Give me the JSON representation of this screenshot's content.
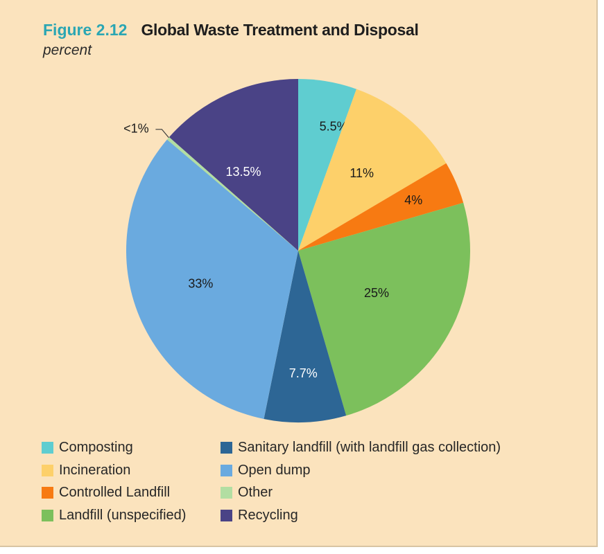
{
  "figure": {
    "number": "Figure 2.12",
    "title": "Global Waste Treatment and Disposal",
    "subtitle": "percent"
  },
  "chart_data": {
    "type": "pie",
    "title": "Global Waste Treatment and Disposal",
    "subtitle": "percent",
    "legend_position": "bottom",
    "slices": [
      {
        "name": "Composting",
        "value": 5.5,
        "label": "5.5%",
        "color": "#5fcdd0",
        "label_color": "#1a1a1a"
      },
      {
        "name": "Incineration",
        "value": 11,
        "label": "11%",
        "color": "#fdd06a",
        "label_color": "#1a1a1a"
      },
      {
        "name": "Controlled Landfill",
        "value": 4,
        "label": "4%",
        "color": "#f77a12",
        "label_color": "#1a1a1a"
      },
      {
        "name": "Landfill (unspecified)",
        "value": 25,
        "label": "25%",
        "color": "#7cc05c",
        "label_color": "#1a1a1a"
      },
      {
        "name": "Sanitary landfill (with landfill gas collection)",
        "value": 7.7,
        "label": "7.7%",
        "color": "#2d6695",
        "label_color": "#ffffff"
      },
      {
        "name": "Open dump",
        "value": 33,
        "label": "33%",
        "color": "#6aaadf",
        "label_color": "#1a1a1a"
      },
      {
        "name": "Other",
        "value": 0.3,
        "label": "<1%",
        "color": "#b2dea2",
        "label_color": "#1a1a1a"
      },
      {
        "name": "Recycling",
        "value": 13.5,
        "label": "13.5%",
        "color": "#4a4386",
        "label_color": "#ffffff"
      }
    ],
    "legend": [
      {
        "name": "Composting",
        "color": "#5fcdd0"
      },
      {
        "name": "Incineration",
        "color": "#fdd06a"
      },
      {
        "name": "Controlled Landfill",
        "color": "#f77a12"
      },
      {
        "name": "Landfill (unspecified)",
        "color": "#7cc05c"
      },
      {
        "name": "Sanitary landfill (with landfill gas collection)",
        "color": "#2d6695"
      },
      {
        "name": "Open dump",
        "color": "#6aaadf"
      },
      {
        "name": "Other",
        "color": "#b2dea2"
      },
      {
        "name": "Recycling",
        "color": "#4a4386"
      }
    ]
  }
}
